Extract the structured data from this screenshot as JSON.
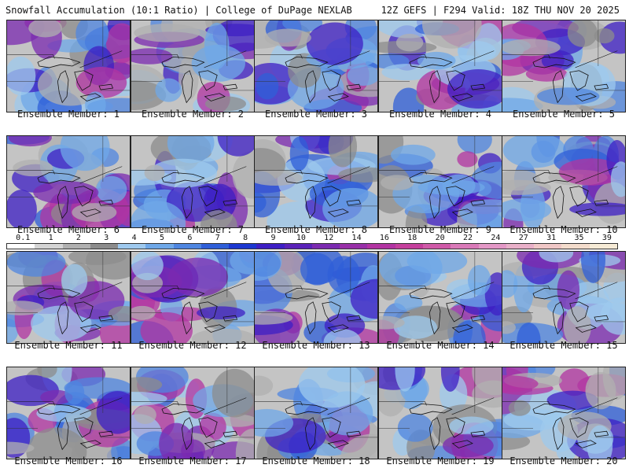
{
  "header": {
    "title": "Snowfall Accumulation (10:1 Ratio) | College of DuPage NEXLAB",
    "run_info": "12Z GEFS | F294 Valid: 18Z THU NOV 20 2025"
  },
  "colorbar": {
    "labels": [
      "0.1",
      "1",
      "2",
      "3",
      "4",
      "5",
      "6",
      "7",
      "8",
      "9",
      "10",
      "12",
      "14",
      "16",
      "18",
      "20",
      "22",
      "24",
      "27",
      "31",
      "35",
      "39"
    ],
    "colors": [
      "#ffffff",
      "#d4d4d4",
      "#b0b0b0",
      "#8c8c8c",
      "#9ec9ee",
      "#6fa8e8",
      "#4f86e0",
      "#2f5fd8",
      "#1c38d0",
      "#3d1fc4",
      "#5a22b8",
      "#7b2ab0",
      "#9830a8",
      "#b234a2",
      "#c4409c",
      "#cf5aa8",
      "#d97ab8",
      "#e398c6",
      "#e8b0c8",
      "#efc7c6",
      "#f3dccc",
      "#f6ebd6"
    ]
  },
  "panels": [
    {
      "label": "Ensemble Member: 1"
    },
    {
      "label": "Ensemble Member: 2"
    },
    {
      "label": "Ensemble Member: 3"
    },
    {
      "label": "Ensemble Member: 4"
    },
    {
      "label": "Ensemble Member: 5"
    },
    {
      "label": "Ensemble Member: 6"
    },
    {
      "label": "Ensemble Member: 7"
    },
    {
      "label": "Ensemble Member: 8"
    },
    {
      "label": "Ensemble Member: 9"
    },
    {
      "label": "Ensemble Member: 10"
    },
    {
      "label": "Ensemble Member: 11"
    },
    {
      "label": "Ensemble Member: 12"
    },
    {
      "label": "Ensemble Member: 13"
    },
    {
      "label": "Ensemble Member: 14"
    },
    {
      "label": "Ensemble Member: 15"
    },
    {
      "label": "Ensemble Member: 16"
    },
    {
      "label": "Ensemble Member: 17"
    },
    {
      "label": "Ensemble Member: 18"
    },
    {
      "label": "Ensemble Member: 19"
    },
    {
      "label": "Ensemble Member: 20"
    }
  ]
}
